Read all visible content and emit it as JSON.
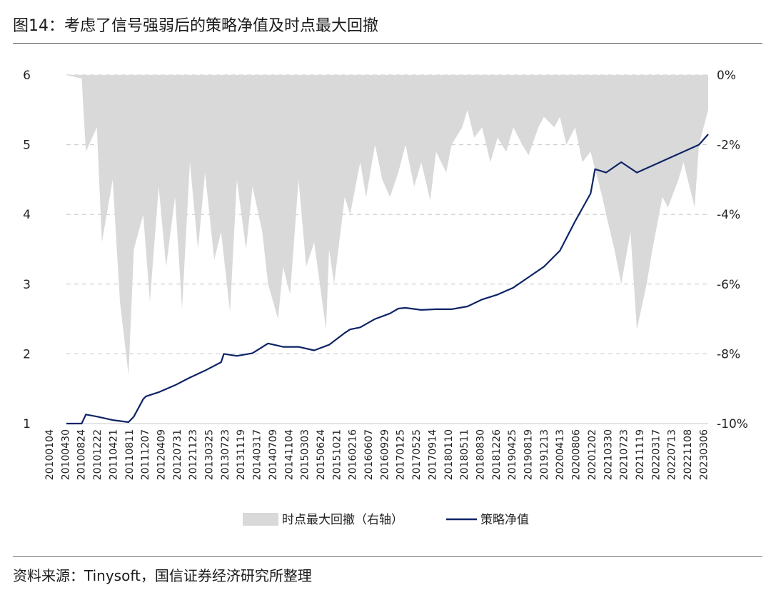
{
  "title": "图14：考虑了信号强弱后的策略净值及时点最大回撤",
  "source": "资料来源：Tinysoft，国信证券经济研究所整理",
  "colors": {
    "nav_line": "#0d2466",
    "drawdown_area": "#d9d9d9",
    "grid": "#c8c8c8"
  },
  "chart_data": {
    "type": "line",
    "grid": "horizontal dashed",
    "legend_position": "bottom",
    "y_left": {
      "lim": [
        1,
        6
      ],
      "ticks": [
        "1",
        "2",
        "3",
        "4",
        "5",
        "6"
      ]
    },
    "y_right": {
      "lim": [
        -10,
        0
      ],
      "ticks": [
        "0%",
        "-2%",
        "-4%",
        "-6%",
        "-8%",
        "-10%"
      ]
    },
    "x_tick_labels": [
      "20100104",
      "20100430",
      "20100824",
      "20101222",
      "20110421",
      "20110811",
      "20111207",
      "20120409",
      "20120731",
      "20121123",
      "20130325",
      "20130723",
      "20131119",
      "20140317",
      "20140709",
      "20141104",
      "20150303",
      "20150624",
      "20151021",
      "20160216",
      "20160607",
      "20160929",
      "20170125",
      "20170525",
      "20170914",
      "20180110",
      "20180511",
      "20180830",
      "20181226",
      "20190425",
      "20190819",
      "20191213",
      "20200413",
      "20200806",
      "20201202",
      "20210330",
      "20210723",
      "20211119",
      "20220317",
      "20220713",
      "20221108",
      "20230306"
    ],
    "series": [
      {
        "name": "策略净值",
        "axis": "left",
        "kind": "line",
        "x": [
          "20100104",
          "20100430",
          "20100601",
          "20100824",
          "20101222",
          "20110421",
          "20110601",
          "20110811",
          "20110901",
          "20111207",
          "20120409",
          "20120731",
          "20121123",
          "20130325",
          "20130415",
          "20130723",
          "20131119",
          "20140317",
          "20140709",
          "20141104",
          "20150303",
          "20150624",
          "20151021",
          "20151201",
          "20160216",
          "20160607",
          "20160929",
          "20161201",
          "20170125",
          "20170525",
          "20170914",
          "20180110",
          "20180511",
          "20180830",
          "20181226",
          "20190425",
          "20190819",
          "20191213",
          "20200413",
          "20200806",
          "20201202",
          "20210105",
          "20210330",
          "20210723",
          "20211119",
          "20220317",
          "20220713",
          "20221108",
          "20230306",
          "20230515"
        ],
        "values": [
          1.0,
          1.0,
          1.13,
          1.1,
          1.05,
          1.02,
          1.1,
          1.35,
          1.39,
          1.45,
          1.55,
          1.66,
          1.76,
          1.88,
          2.0,
          1.97,
          2.01,
          2.15,
          2.1,
          2.1,
          2.05,
          2.13,
          2.3,
          2.35,
          2.38,
          2.5,
          2.58,
          2.65,
          2.66,
          2.63,
          2.64,
          2.64,
          2.68,
          2.78,
          2.85,
          2.95,
          3.1,
          3.25,
          3.48,
          3.9,
          4.3,
          4.65,
          4.6,
          4.75,
          4.6,
          4.7,
          4.8,
          4.9,
          5.0,
          5.15
        ]
      },
      {
        "name": "时点最大回撤（右轴）",
        "axis": "right",
        "kind": "area",
        "x": [
          "20100104",
          "20100430",
          "20100601",
          "20100824",
          "20101001",
          "20101222",
          "20110215",
          "20110421",
          "20110601",
          "20110811",
          "20111001",
          "20111207",
          "20120201",
          "20120409",
          "20120601",
          "20120731",
          "20121001",
          "20121123",
          "20130201",
          "20130325",
          "20130601",
          "20130723",
          "20131001",
          "20131119",
          "20140201",
          "20140317",
          "20140601",
          "20140709",
          "20140901",
          "20141104",
          "20150101",
          "20150303",
          "20150601",
          "20150624",
          "20150801",
          "20151021",
          "20151201",
          "20160216",
          "20160401",
          "20160607",
          "20160801",
          "20160929",
          "20161201",
          "20170125",
          "20170401",
          "20170525",
          "20170801",
          "20170914",
          "20171201",
          "20180110",
          "20180401",
          "20180511",
          "20180701",
          "20180830",
          "20181101",
          "20181226",
          "20190301",
          "20190425",
          "20190701",
          "20190819",
          "20191101",
          "20191213",
          "20200301",
          "20200413",
          "20200601",
          "20200806",
          "20201001",
          "20201202",
          "20210301",
          "20210330",
          "20210601",
          "20210723",
          "20211001",
          "20211119",
          "20220201",
          "20220317",
          "20220601",
          "20220713",
          "20221001",
          "20221108",
          "20230201",
          "20230306",
          "20230515"
        ],
        "values": [
          0.0,
          -0.1,
          -2.2,
          -1.5,
          -4.8,
          -3.0,
          -6.5,
          -8.6,
          -5.0,
          -4.0,
          -6.5,
          -3.2,
          -5.5,
          -3.5,
          -6.7,
          -2.5,
          -5.0,
          -2.8,
          -5.3,
          -4.5,
          -6.8,
          -3.0,
          -5.0,
          -3.2,
          -4.5,
          -6.0,
          -7.0,
          -5.5,
          -6.3,
          -3.0,
          -5.5,
          -4.8,
          -7.3,
          -5.0,
          -6.0,
          -3.5,
          -4.0,
          -2.5,
          -3.5,
          -2.0,
          -3.0,
          -3.5,
          -2.8,
          -2.0,
          -3.2,
          -2.5,
          -3.6,
          -2.2,
          -2.8,
          -2.0,
          -1.5,
          -1.0,
          -1.8,
          -1.5,
          -2.5,
          -1.8,
          -2.2,
          -1.5,
          -2.0,
          -2.3,
          -1.5,
          -1.2,
          -1.5,
          -1.2,
          -2.0,
          -1.5,
          -2.5,
          -2.2,
          -3.5,
          -4.0,
          -5.0,
          -6.0,
          -4.5,
          -7.3,
          -6.0,
          -5.0,
          -3.5,
          -3.8,
          -3.0,
          -2.5,
          -3.8,
          -2.0,
          -1.0
        ]
      }
    ]
  }
}
